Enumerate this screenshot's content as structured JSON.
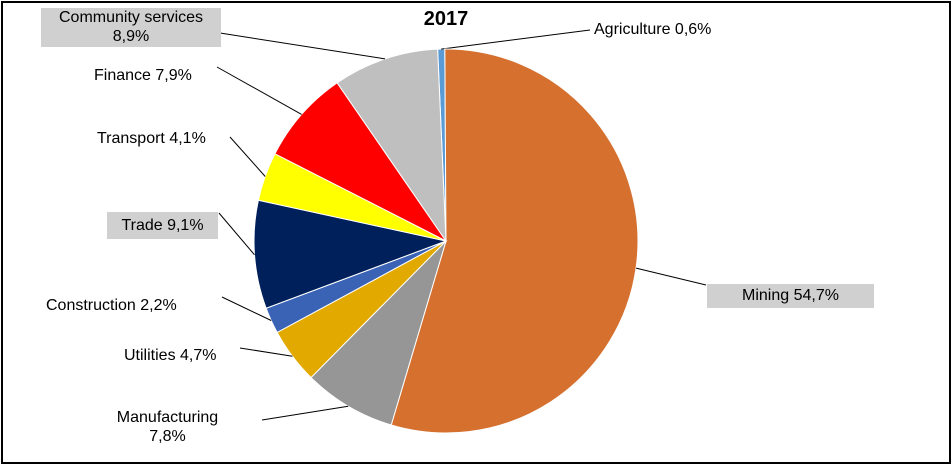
{
  "chart_data": {
    "type": "pie",
    "title": "2017",
    "slices": [
      {
        "name": "Agriculture",
        "value": 0.6,
        "label": "Agriculture 0,6%",
        "color": "#5b9bd5"
      },
      {
        "name": "Mining",
        "value": 54.7,
        "label": "Mining 54,7%",
        "color": "#d5702f"
      },
      {
        "name": "Manufacturing",
        "value": 7.8,
        "label": "Manufacturing\n7,8%",
        "color": "#969696"
      },
      {
        "name": "Utilities",
        "value": 4.7,
        "label": "Utilities 4,7%",
        "color": "#e2a900"
      },
      {
        "name": "Construction",
        "value": 2.2,
        "label": "Construction 2,2%",
        "color": "#3a62b5"
      },
      {
        "name": "Trade",
        "value": 9.1,
        "label": "Trade 9,1%",
        "color": "#00205b"
      },
      {
        "name": "Transport",
        "value": 4.1,
        "label": "Transport 4,1%",
        "color": "#ffff00"
      },
      {
        "name": "Finance",
        "value": 7.9,
        "label": "Finance 7,9%",
        "color": "#ff0000"
      },
      {
        "name": "Community services",
        "value": 8.9,
        "label": "Community services\n8,9%",
        "color": "#bfbfbf"
      }
    ]
  }
}
